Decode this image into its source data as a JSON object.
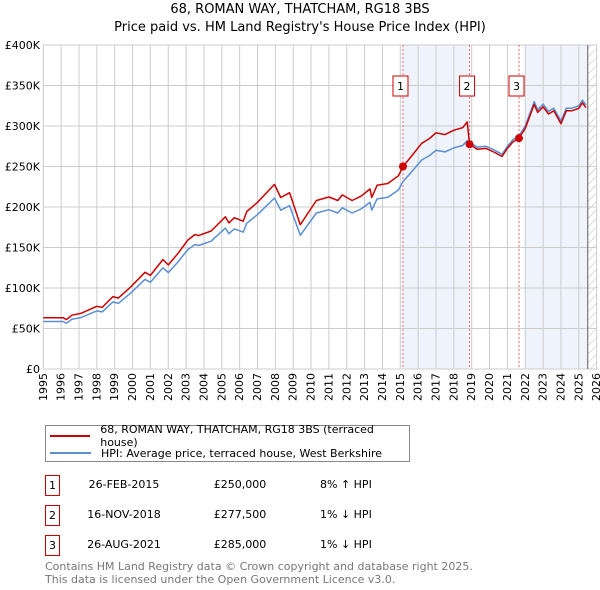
{
  "title": "68, ROMAN WAY, THATCHAM, RG18 3BS",
  "subtitle": "Price paid vs. HM Land Registry's House Price Index (HPI)",
  "legend": {
    "property": "68, ROMAN WAY, THATCHAM, RG18 3BS (terraced house)",
    "hpi": "HPI: Average price, terraced house, West Berkshire"
  },
  "colors": {
    "property": "#cc0000",
    "hpi": "#5b8fd4",
    "shade": "#eef3fc",
    "grid": "#cccccc"
  },
  "sales": [
    {
      "num": "1",
      "date": "26-FEB-2015",
      "price": "£250,000",
      "hpi": "8% ↑ HPI",
      "year": 2015.15,
      "value": 250
    },
    {
      "num": "2",
      "date": "16-NOV-2018",
      "price": "£277,500",
      "hpi": "1% ↓ HPI",
      "year": 2018.88,
      "value": 277.5
    },
    {
      "num": "3",
      "date": "26-AUG-2021",
      "price": "£285,000",
      "hpi": "1% ↓ HPI",
      "year": 2021.65,
      "value": 285
    }
  ],
  "footer": {
    "line1": "Contains HM Land Registry data © Crown copyright and database right 2025.",
    "line2": "This data is licensed under the Open Government Licence v3.0."
  },
  "chart_data": {
    "type": "line",
    "title": "68, ROMAN WAY, THATCHAM, RG18 3BS",
    "xlim": [
      1995,
      2026
    ],
    "ylim": [
      0,
      400
    ],
    "y_unit": "£K",
    "x_ticks": [
      "1995",
      "1996",
      "1997",
      "1998",
      "1999",
      "2000",
      "2001",
      "2002",
      "2003",
      "2004",
      "2005",
      "2006",
      "2007",
      "2008",
      "2009",
      "2010",
      "2011",
      "2012",
      "2013",
      "2014",
      "2015",
      "2016",
      "2017",
      "2018",
      "2019",
      "2020",
      "2021",
      "2022",
      "2023",
      "2024",
      "2025",
      "2026"
    ],
    "y_ticks": [
      "£0",
      "£50K",
      "£100K",
      "£150K",
      "£200K",
      "£250K",
      "£300K",
      "£350K",
      "£400K"
    ],
    "shaded_ranges": [
      [
        2015.15,
        2018.88
      ],
      [
        2022.0,
        2025.5
      ]
    ],
    "hatched_from": 2025.5,
    "series": [
      {
        "name": "68, ROMAN WAY, THATCHAM, RG18 3BS (terraced house)",
        "points": [
          [
            1995.0,
            63.3
          ],
          [
            1996.1,
            63.3
          ],
          [
            1996.3,
            61
          ],
          [
            1996.6,
            66.4
          ],
          [
            1997.1,
            68.6
          ],
          [
            1998.0,
            77.4
          ],
          [
            1998.3,
            76
          ],
          [
            1998.9,
            89.4
          ],
          [
            1999.2,
            87.5
          ],
          [
            1999.9,
            101.5
          ],
          [
            2000.7,
            119.4
          ],
          [
            2001.0,
            115.6
          ],
          [
            2001.7,
            135
          ],
          [
            2002.0,
            128.5
          ],
          [
            2002.5,
            141.5
          ],
          [
            2003.1,
            159.3
          ],
          [
            2003.5,
            166
          ],
          [
            2003.7,
            164.7
          ],
          [
            2004.4,
            170.4
          ],
          [
            2005.2,
            187.9
          ],
          [
            2005.4,
            180.4
          ],
          [
            2005.7,
            186.8
          ],
          [
            2006.2,
            182.5
          ],
          [
            2006.4,
            194.4
          ],
          [
            2007.0,
            205.8
          ],
          [
            2007.95,
            227.9
          ],
          [
            2008.3,
            211.7
          ],
          [
            2008.8,
            217.7
          ],
          [
            2009.4,
            178.2
          ],
          [
            2010.3,
            208
          ],
          [
            2011.0,
            212.4
          ],
          [
            2011.5,
            208
          ],
          [
            2011.75,
            214.9
          ],
          [
            2012.3,
            208
          ],
          [
            2012.8,
            213.3
          ],
          [
            2013.3,
            222.2
          ],
          [
            2013.4,
            211.7
          ],
          [
            2013.7,
            226.8
          ],
          [
            2014.3,
            229
          ],
          [
            2014.9,
            238.7
          ],
          [
            2015.15,
            250
          ],
          [
            2015.5,
            259.2
          ],
          [
            2016.2,
            278.6
          ],
          [
            2016.6,
            284
          ],
          [
            2017.0,
            291.6
          ],
          [
            2017.5,
            289.4
          ],
          [
            2018.0,
            294.8
          ],
          [
            2018.5,
            298
          ],
          [
            2018.75,
            305
          ],
          [
            2018.88,
            277.5
          ],
          [
            2019.3,
            271.3
          ],
          [
            2019.8,
            272.3
          ],
          [
            2020.3,
            267.3
          ],
          [
            2020.7,
            262.4
          ],
          [
            2021.0,
            272.3
          ],
          [
            2021.3,
            280.2
          ],
          [
            2021.65,
            285
          ],
          [
            2022.0,
            297
          ],
          [
            2022.3,
            314.8
          ],
          [
            2022.5,
            326.7
          ],
          [
            2022.7,
            316.8
          ],
          [
            2023.0,
            323.7
          ],
          [
            2023.3,
            314.8
          ],
          [
            2023.6,
            318.8
          ],
          [
            2024.0,
            302.9
          ],
          [
            2024.3,
            318.8
          ],
          [
            2024.6,
            318.8
          ],
          [
            2025.0,
            321.8
          ],
          [
            2025.2,
            328.7
          ],
          [
            2025.4,
            322.7
          ]
        ]
      },
      {
        "name": "HPI: Average price, terraced house, West Berkshire",
        "points": [
          [
            1995.0,
            58.6
          ],
          [
            1996.1,
            58.6
          ],
          [
            1996.3,
            56.5
          ],
          [
            1996.6,
            61.5
          ],
          [
            1997.1,
            63.5
          ],
          [
            1998.0,
            71.7
          ],
          [
            1998.3,
            70.5
          ],
          [
            1998.9,
            82.8
          ],
          [
            1999.2,
            81
          ],
          [
            1999.9,
            94
          ],
          [
            2000.7,
            110.6
          ],
          [
            2001.0,
            107
          ],
          [
            2001.7,
            125
          ],
          [
            2002.0,
            119
          ],
          [
            2002.5,
            131
          ],
          [
            2003.1,
            147.5
          ],
          [
            2003.5,
            153.7
          ],
          [
            2003.7,
            152.5
          ],
          [
            2004.4,
            157.8
          ],
          [
            2005.2,
            174
          ],
          [
            2005.4,
            167
          ],
          [
            2005.7,
            173
          ],
          [
            2006.2,
            169
          ],
          [
            2006.4,
            180
          ],
          [
            2007.0,
            190.6
          ],
          [
            2007.95,
            211
          ],
          [
            2008.3,
            196
          ],
          [
            2008.8,
            201.6
          ],
          [
            2009.4,
            165
          ],
          [
            2010.3,
            192.6
          ],
          [
            2011.0,
            196.7
          ],
          [
            2011.5,
            192.6
          ],
          [
            2011.75,
            199
          ],
          [
            2012.3,
            192.6
          ],
          [
            2012.8,
            197.5
          ],
          [
            2013.3,
            205.7
          ],
          [
            2013.4,
            196
          ],
          [
            2013.7,
            210
          ],
          [
            2014.3,
            212
          ],
          [
            2014.9,
            221
          ],
          [
            2015.15,
            231.5
          ],
          [
            2015.5,
            240
          ],
          [
            2016.2,
            258
          ],
          [
            2016.6,
            263
          ],
          [
            2017.0,
            270
          ],
          [
            2017.5,
            268
          ],
          [
            2018.0,
            273
          ],
          [
            2018.5,
            276
          ],
          [
            2018.75,
            282
          ],
          [
            2018.88,
            280
          ],
          [
            2019.3,
            274
          ],
          [
            2019.8,
            275
          ],
          [
            2020.3,
            270
          ],
          [
            2020.7,
            265
          ],
          [
            2021.0,
            275
          ],
          [
            2021.3,
            283
          ],
          [
            2021.65,
            288
          ],
          [
            2022.0,
            300
          ],
          [
            2022.3,
            318
          ],
          [
            2022.5,
            330
          ],
          [
            2022.7,
            320
          ],
          [
            2023.0,
            327
          ],
          [
            2023.3,
            318
          ],
          [
            2023.6,
            322
          ],
          [
            2024.0,
            306
          ],
          [
            2024.3,
            322
          ],
          [
            2024.6,
            322
          ],
          [
            2025.0,
            325
          ],
          [
            2025.2,
            332
          ],
          [
            2025.4,
            326
          ]
        ]
      }
    ]
  }
}
